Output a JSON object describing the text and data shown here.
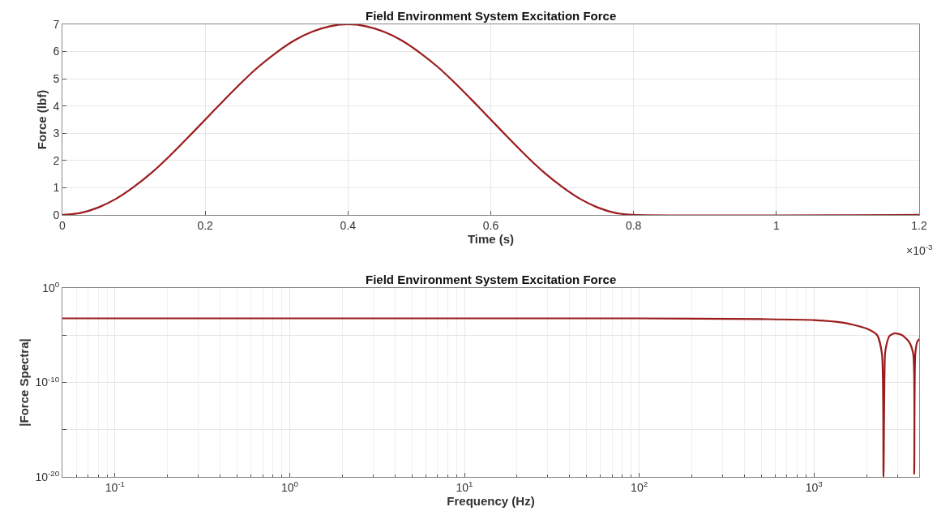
{
  "chart_data": [
    {
      "type": "line",
      "title": "Field Environment System Excitation Force",
      "xlabel": "Time (s)",
      "ylabel": "Force (lbf)",
      "x": [
        0,
        0.025,
        0.05,
        0.075,
        0.1,
        0.125,
        0.15,
        0.175,
        0.2,
        0.225,
        0.25,
        0.275,
        0.3,
        0.325,
        0.35,
        0.375,
        0.4,
        0.425,
        0.45,
        0.475,
        0.5,
        0.525,
        0.55,
        0.575,
        0.6,
        0.625,
        0.65,
        0.675,
        0.7,
        0.725,
        0.75,
        0.775,
        0.8,
        1.2
      ],
      "series": [
        {
          "color": "#9b1b1b",
          "values": [
            0,
            0.07,
            0.27,
            0.59,
            1.03,
            1.55,
            2.16,
            2.82,
            3.5,
            4.18,
            4.84,
            5.45,
            5.97,
            6.41,
            6.73,
            6.93,
            7,
            6.93,
            6.73,
            6.41,
            5.97,
            5.45,
            4.84,
            4.18,
            3.5,
            2.82,
            2.16,
            1.55,
            1.03,
            0.59,
            0.27,
            0.07,
            0,
            0
          ]
        }
      ],
      "xlim": [
        0,
        1.2
      ],
      "xticks": [
        0,
        0.2,
        0.4,
        0.6,
        0.8,
        1,
        1.2
      ],
      "ylim": [
        0,
        7
      ],
      "yticks": [
        0,
        1,
        2,
        3,
        4,
        5,
        6,
        7
      ],
      "grid": true,
      "annotations": [
        "×10$^{-3}$"
      ]
    },
    {
      "type": "line",
      "title": "Field Environment System Excitation Force",
      "xlabel": "Frequency (Hz)",
      "ylabel": "|Force Spectra|",
      "log": "xy",
      "x": [
        0.05,
        1,
        10,
        100,
        500,
        1000,
        1500,
        2000,
        2300,
        2450,
        2500,
        2550,
        2600,
        2700,
        2900,
        3200,
        3500,
        3700,
        3750,
        3800,
        3900,
        4000
      ],
      "series": [
        {
          "color": "#9b1b1b",
          "values": [
            0.0006,
            0.0006,
            0.0006,
            0.0006,
            0.0005,
            0.0004,
            0.0002,
            5e-05,
            1e-05,
            1e-07,
            1e-20,
            1e-07,
            1e-06,
            8e-06,
            1.6e-05,
            1e-05,
            2e-06,
            1e-07,
            2e-20,
            1e-07,
            2e-06,
            4e-06
          ]
        }
      ],
      "xlim": [
        0.05,
        4000
      ],
      "xticks": [
        {
          "value": 0.1,
          "label": "10$^{-1}$"
        },
        {
          "value": 1,
          "label": "10$^{0}$"
        },
        {
          "value": 10,
          "label": "10$^{1}$"
        },
        {
          "value": 100,
          "label": "10$^{2}$"
        },
        {
          "value": 1000,
          "label": "10$^{3}$"
        }
      ],
      "ylim": [
        1e-20,
        1
      ],
      "yticks": [
        {
          "value": 1e-20,
          "label": "10$^{-20}$"
        },
        {
          "value": 1e-15,
          "label": null
        },
        {
          "value": 1e-10,
          "label": "10$^{-10}$"
        },
        {
          "value": 1e-05,
          "label": null
        },
        {
          "value": 1,
          "label": "10$^{0}$"
        }
      ],
      "grid": true
    }
  ]
}
